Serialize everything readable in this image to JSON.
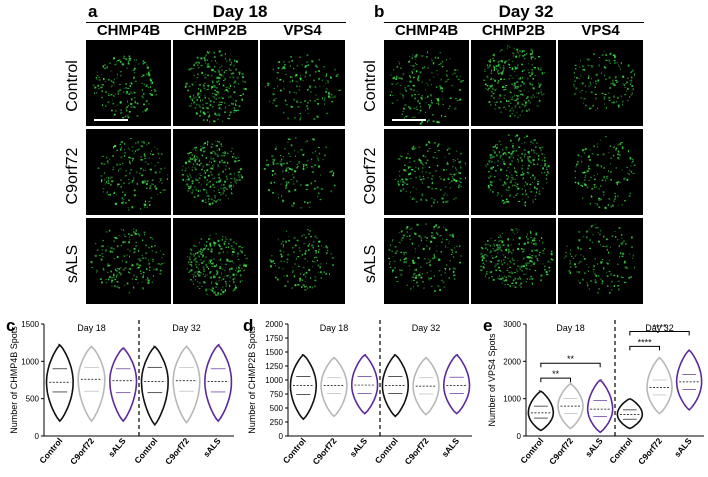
{
  "panels": {
    "a": {
      "letter": "a",
      "day": "Day 18"
    },
    "b": {
      "letter": "b",
      "day": "Day 32"
    }
  },
  "columns": [
    "CHMP4B",
    "CHMP2B",
    "VPS4"
  ],
  "rows": [
    "Control",
    "C9orf72",
    "sALS"
  ],
  "colors": {
    "control": "#111111",
    "c9orf72": "#b8b8b8",
    "sals": "#5b2a9c",
    "stain": "#3ee64a"
  },
  "chart_data": [
    {
      "panel": "c",
      "type": "violin",
      "ylabel": "Number of CHMP4B Spots",
      "ylim": [
        0,
        1500
      ],
      "yticks": [
        0,
        500,
        1000,
        1500
      ],
      "groups": [
        "Day 18",
        "Day 32"
      ],
      "categories": [
        "Control",
        "C9orf72",
        "sALS",
        "Control",
        "C9orf72",
        "sALS"
      ],
      "series": [
        {
          "day": "Day 18",
          "label": "Control",
          "color": "#111111",
          "min": 200,
          "max": 1220,
          "median": 720,
          "q1": 590,
          "q3": 900
        },
        {
          "day": "Day 18",
          "label": "C9orf72",
          "color": "#b8b8b8",
          "min": 200,
          "max": 1200,
          "median": 760,
          "q1": 600,
          "q3": 920
        },
        {
          "day": "Day 18",
          "label": "sALS",
          "color": "#5b2a9c",
          "min": 200,
          "max": 1180,
          "median": 740,
          "q1": 580,
          "q3": 900
        },
        {
          "day": "Day 32",
          "label": "Control",
          "color": "#111111",
          "min": 150,
          "max": 1200,
          "median": 730,
          "q1": 580,
          "q3": 920
        },
        {
          "day": "Day 32",
          "label": "C9orf72",
          "color": "#b8b8b8",
          "min": 180,
          "max": 1200,
          "median": 740,
          "q1": 600,
          "q3": 920
        },
        {
          "day": "Day 32",
          "label": "sALS",
          "color": "#5b2a9c",
          "min": 200,
          "max": 1220,
          "median": 730,
          "q1": 590,
          "q3": 900
        }
      ],
      "significance": []
    },
    {
      "panel": "d",
      "type": "violin",
      "ylabel": "Number of CHMP2B Spots",
      "ylim": [
        0,
        2000
      ],
      "yticks": [
        0,
        250,
        500,
        750,
        1000,
        1250,
        1500,
        1750,
        2000
      ],
      "groups": [
        "Day 18",
        "Day 32"
      ],
      "categories": [
        "Control",
        "C9orf72",
        "sALS",
        "Control",
        "C9orf72",
        "sALS"
      ],
      "series": [
        {
          "day": "Day 18",
          "label": "Control",
          "color": "#111111",
          "min": 300,
          "max": 1450,
          "median": 900,
          "q1": 740,
          "q3": 1060
        },
        {
          "day": "Day 18",
          "label": "C9orf72",
          "color": "#b8b8b8",
          "min": 350,
          "max": 1400,
          "median": 900,
          "q1": 760,
          "q3": 1040
        },
        {
          "day": "Day 18",
          "label": "sALS",
          "color": "#5b2a9c",
          "min": 400,
          "max": 1450,
          "median": 910,
          "q1": 760,
          "q3": 1060
        },
        {
          "day": "Day 32",
          "label": "Control",
          "color": "#111111",
          "min": 350,
          "max": 1450,
          "median": 900,
          "q1": 760,
          "q3": 1060
        },
        {
          "day": "Day 32",
          "label": "C9orf72",
          "color": "#b8b8b8",
          "min": 380,
          "max": 1400,
          "median": 890,
          "q1": 750,
          "q3": 1040
        },
        {
          "day": "Day 32",
          "label": "sALS",
          "color": "#5b2a9c",
          "min": 400,
          "max": 1450,
          "median": 900,
          "q1": 760,
          "q3": 1050
        }
      ],
      "significance": []
    },
    {
      "panel": "e",
      "type": "violin",
      "ylabel": "Number of VPS4 Spots",
      "ylim": [
        0,
        3000
      ],
      "yticks": [
        0,
        1000,
        2000,
        3000
      ],
      "groups": [
        "Day 18",
        "Day 32"
      ],
      "categories": [
        "Control",
        "C9orf72",
        "sALS",
        "Control",
        "C9orf72",
        "sALS"
      ],
      "series": [
        {
          "day": "Day 18",
          "label": "Control",
          "color": "#111111",
          "min": 150,
          "max": 1200,
          "median": 620,
          "q1": 480,
          "q3": 800
        },
        {
          "day": "Day 18",
          "label": "C9orf72",
          "color": "#b8b8b8",
          "min": 200,
          "max": 1400,
          "median": 800,
          "q1": 600,
          "q3": 1000
        },
        {
          "day": "Day 18",
          "label": "sALS",
          "color": "#5b2a9c",
          "min": 100,
          "max": 1500,
          "median": 720,
          "q1": 520,
          "q3": 950
        },
        {
          "day": "Day 32",
          "label": "Control",
          "color": "#111111",
          "min": 200,
          "max": 1000,
          "median": 580,
          "q1": 450,
          "q3": 700
        },
        {
          "day": "Day 32",
          "label": "C9orf72",
          "color": "#b8b8b8",
          "min": 600,
          "max": 2100,
          "median": 1300,
          "q1": 1100,
          "q3": 1500
        },
        {
          "day": "Day 32",
          "label": "sALS",
          "color": "#5b2a9c",
          "min": 700,
          "max": 2300,
          "median": 1450,
          "q1": 1250,
          "q3": 1650
        }
      ],
      "significance": [
        {
          "from": 0,
          "to": 1,
          "label": "**",
          "level": 1550
        },
        {
          "from": 0,
          "to": 2,
          "label": "**",
          "level": 1950
        },
        {
          "from": 3,
          "to": 4,
          "label": "****",
          "level": 2400
        },
        {
          "from": 3,
          "to": 5,
          "label": "****",
          "level": 2800
        }
      ]
    }
  ]
}
